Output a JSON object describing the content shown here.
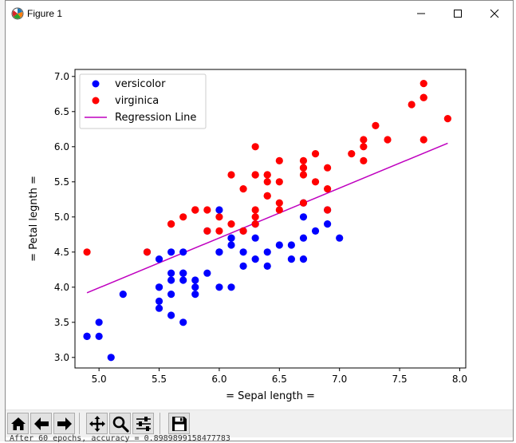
{
  "window": {
    "title": "Figure 1"
  },
  "toolbar": {
    "buttons": [
      {
        "name": "home-button",
        "icon": "home-icon"
      },
      {
        "name": "back-button",
        "icon": "arrow-left-icon"
      },
      {
        "name": "forward-button",
        "icon": "arrow-right-icon"
      },
      {
        "name": "pan-button",
        "icon": "move-icon"
      },
      {
        "name": "zoom-button",
        "icon": "magnifier-icon"
      },
      {
        "name": "subplots-button",
        "icon": "sliders-icon"
      },
      {
        "name": "save-button",
        "icon": "floppy-icon"
      }
    ]
  },
  "console": {
    "text": "After 60 epochs, accuracy = 0.8989899158477783"
  },
  "chart_data": {
    "type": "scatter",
    "xlabel": "= Sepal length =",
    "ylabel": "= Petal legnth =",
    "xlim": [
      4.8,
      8.05
    ],
    "ylim": [
      2.85,
      7.1
    ],
    "xticks": [
      "5.0",
      "5.5",
      "6.0",
      "6.5",
      "7.0",
      "7.5",
      "8.0"
    ],
    "yticks": [
      "3.0",
      "3.5",
      "4.0",
      "4.5",
      "5.0",
      "5.5",
      "6.0",
      "6.5",
      "7.0"
    ],
    "legend_position": "top-left",
    "series": [
      {
        "name": "versicolor",
        "kind": "scatter",
        "color": "#0000ff",
        "points": [
          [
            7.0,
            4.7
          ],
          [
            6.4,
            4.5
          ],
          [
            6.9,
            4.9
          ],
          [
            5.5,
            4.0
          ],
          [
            6.5,
            4.6
          ],
          [
            5.7,
            4.5
          ],
          [
            6.3,
            4.7
          ],
          [
            4.9,
            3.3
          ],
          [
            6.6,
            4.6
          ],
          [
            5.2,
            3.9
          ],
          [
            5.0,
            3.5
          ],
          [
            5.9,
            4.2
          ],
          [
            6.0,
            4.0
          ],
          [
            6.1,
            4.7
          ],
          [
            5.6,
            3.6
          ],
          [
            6.7,
            4.4
          ],
          [
            5.6,
            4.5
          ],
          [
            5.8,
            4.1
          ],
          [
            6.2,
            4.5
          ],
          [
            5.6,
            3.9
          ],
          [
            5.9,
            4.8
          ],
          [
            6.1,
            4.0
          ],
          [
            6.3,
            4.9
          ],
          [
            6.1,
            4.7
          ],
          [
            6.4,
            4.3
          ],
          [
            6.6,
            4.4
          ],
          [
            6.8,
            4.8
          ],
          [
            6.7,
            5.0
          ],
          [
            6.0,
            4.5
          ],
          [
            5.7,
            3.5
          ],
          [
            5.5,
            3.8
          ],
          [
            5.5,
            3.7
          ],
          [
            5.8,
            3.9
          ],
          [
            6.0,
            5.1
          ],
          [
            5.4,
            4.5
          ],
          [
            6.0,
            4.5
          ],
          [
            6.7,
            4.7
          ],
          [
            6.3,
            4.4
          ],
          [
            5.6,
            4.1
          ],
          [
            5.5,
            4.0
          ],
          [
            5.5,
            4.4
          ],
          [
            6.1,
            4.6
          ],
          [
            5.8,
            4.0
          ],
          [
            5.0,
            3.3
          ],
          [
            5.6,
            4.2
          ],
          [
            5.7,
            4.2
          ],
          [
            5.7,
            4.2
          ],
          [
            6.2,
            4.3
          ],
          [
            5.1,
            3.0
          ],
          [
            5.7,
            4.1
          ],
          [
            6.9,
            5.1
          ],
          [
            6.7,
            5.2
          ],
          [
            6.2,
            4.8
          ],
          [
            4.9,
            3.3
          ]
        ]
      },
      {
        "name": "virginica",
        "kind": "scatter",
        "color": "#ff0000",
        "points": [
          [
            6.3,
            6.0
          ],
          [
            5.8,
            5.1
          ],
          [
            7.1,
            5.9
          ],
          [
            6.3,
            5.6
          ],
          [
            6.5,
            5.8
          ],
          [
            7.6,
            6.6
          ],
          [
            4.9,
            4.5
          ],
          [
            7.3,
            6.3
          ],
          [
            6.7,
            5.8
          ],
          [
            7.2,
            6.1
          ],
          [
            6.5,
            5.1
          ],
          [
            6.4,
            5.3
          ],
          [
            6.8,
            5.5
          ],
          [
            5.7,
            5.0
          ],
          [
            5.8,
            5.1
          ],
          [
            6.4,
            5.3
          ],
          [
            6.5,
            5.5
          ],
          [
            7.7,
            6.7
          ],
          [
            7.7,
            6.9
          ],
          [
            6.0,
            5.0
          ],
          [
            6.9,
            5.7
          ],
          [
            5.6,
            4.9
          ],
          [
            7.7,
            6.7
          ],
          [
            6.3,
            4.9
          ],
          [
            6.7,
            5.7
          ],
          [
            7.2,
            6.0
          ],
          [
            6.2,
            4.8
          ],
          [
            6.1,
            4.9
          ],
          [
            6.4,
            5.6
          ],
          [
            7.2,
            5.8
          ],
          [
            7.4,
            6.1
          ],
          [
            7.9,
            6.4
          ],
          [
            6.4,
            5.6
          ],
          [
            6.3,
            5.1
          ],
          [
            6.1,
            5.6
          ],
          [
            7.7,
            6.1
          ],
          [
            6.3,
            5.6
          ],
          [
            6.4,
            5.5
          ],
          [
            6.0,
            4.8
          ],
          [
            6.9,
            5.4
          ],
          [
            6.7,
            5.6
          ],
          [
            6.9,
            5.1
          ],
          [
            5.8,
            5.1
          ],
          [
            6.8,
            5.9
          ],
          [
            6.7,
            5.7
          ],
          [
            6.7,
            5.2
          ],
          [
            6.3,
            5.0
          ],
          [
            6.5,
            5.2
          ],
          [
            6.2,
            5.4
          ],
          [
            5.9,
            5.1
          ],
          [
            5.6,
            4.9
          ],
          [
            5.9,
            4.8
          ],
          [
            5.4,
            4.5
          ]
        ]
      },
      {
        "name": "Regression Line",
        "kind": "line",
        "color": "#bf00bf",
        "points": [
          [
            4.9,
            3.92
          ],
          [
            7.9,
            6.05
          ]
        ]
      }
    ]
  }
}
